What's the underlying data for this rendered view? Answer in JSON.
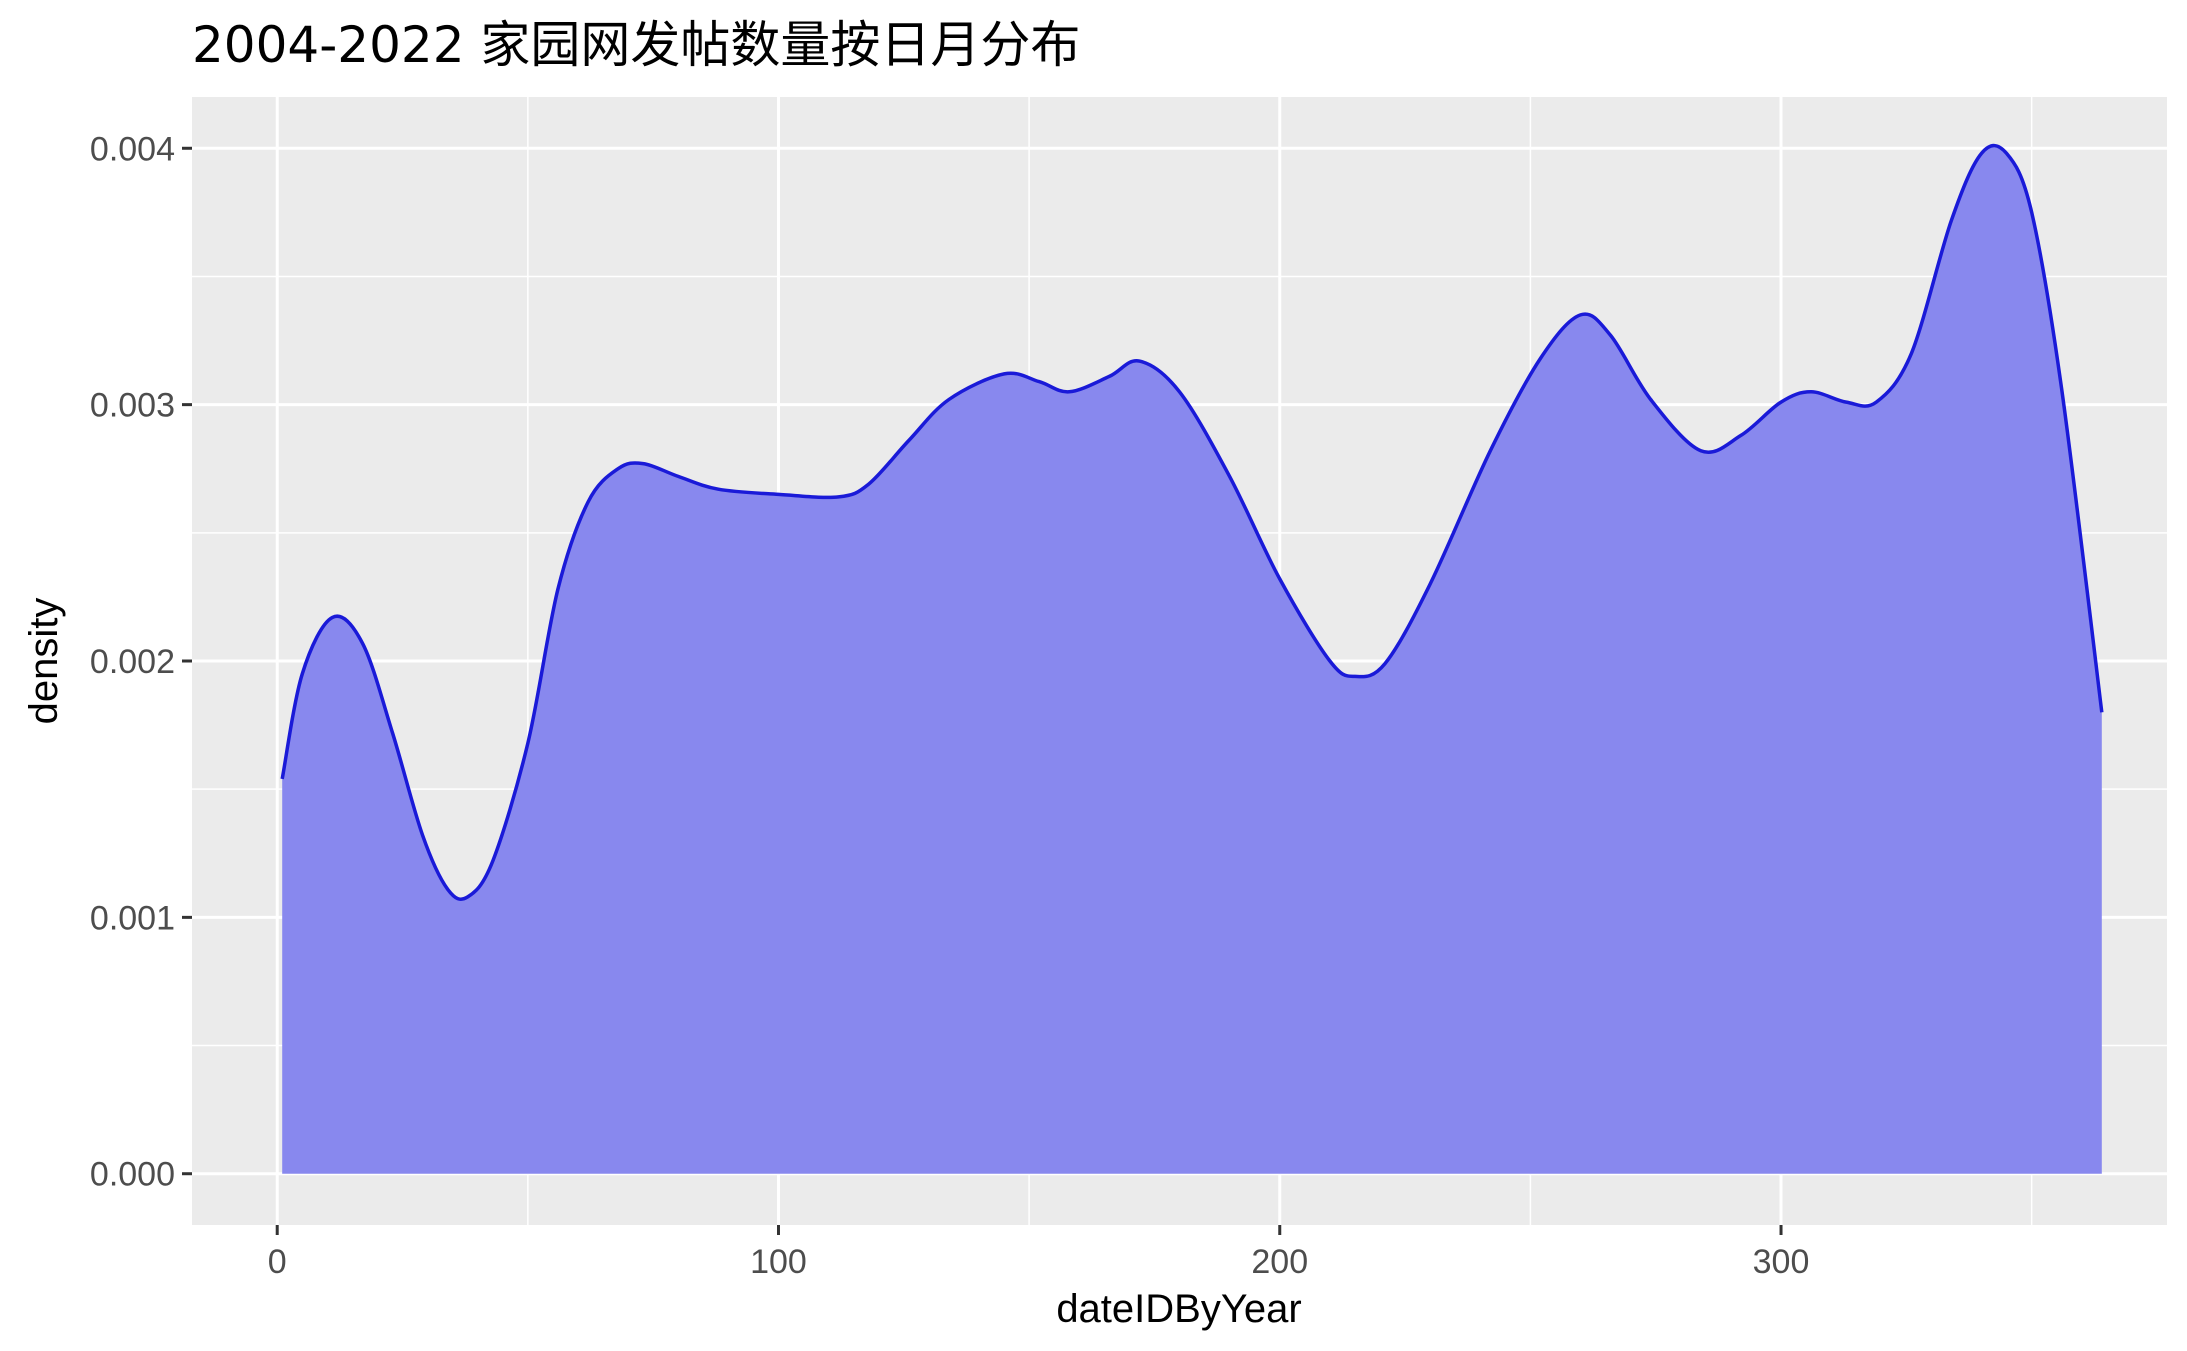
{
  "chart_data": {
    "type": "area",
    "title": "2004-2022 家园网发帖数量按日月分布",
    "xlabel": "dateIDByYear",
    "ylabel": "density",
    "xlim": [
      -17,
      377
    ],
    "ylim": [
      -0.0002,
      0.0042
    ],
    "x_ticks": [
      0,
      100,
      200,
      300
    ],
    "x_tick_labels": [
      "0",
      "100",
      "200",
      "300"
    ],
    "y_ticks": [
      0,
      0.001,
      0.002,
      0.003,
      0.004
    ],
    "y_tick_labels": [
      "0.000",
      "0.001",
      "0.002",
      "0.003",
      "0.004"
    ],
    "grid": true,
    "colors": {
      "fill": "#8888ee",
      "line": "#1a1ad8",
      "panel": "#ebebeb",
      "grid": "#ffffff"
    },
    "x": [
      1,
      5,
      11,
      17,
      23,
      29,
      34,
      38,
      43,
      50,
      56,
      62,
      68,
      73,
      80,
      88,
      100,
      112,
      118,
      126,
      134,
      145,
      152,
      158,
      166,
      172,
      180,
      190,
      200,
      210,
      215,
      221,
      230,
      242,
      252,
      260,
      266,
      274,
      284,
      292,
      300,
      306,
      313,
      319,
      326,
      334,
      340,
      345,
      350,
      356,
      364
    ],
    "y": [
      0.00154,
      0.00195,
      0.00217,
      0.00207,
      0.00172,
      0.00132,
      0.00111,
      0.00108,
      0.00122,
      0.00168,
      0.00228,
      0.00262,
      0.00275,
      0.00277,
      0.00272,
      0.00267,
      0.00265,
      0.00264,
      0.00269,
      0.00286,
      0.00302,
      0.00312,
      0.00309,
      0.00305,
      0.00311,
      0.00317,
      0.00305,
      0.00272,
      0.00232,
      0.002,
      0.00194,
      0.00199,
      0.0023,
      0.00282,
      0.00318,
      0.00335,
      0.00327,
      0.00302,
      0.00282,
      0.00288,
      0.00301,
      0.00305,
      0.00301,
      0.00301,
      0.0032,
      0.00372,
      0.00398,
      0.00398,
      0.00375,
      0.00306,
      0.0018
    ]
  }
}
